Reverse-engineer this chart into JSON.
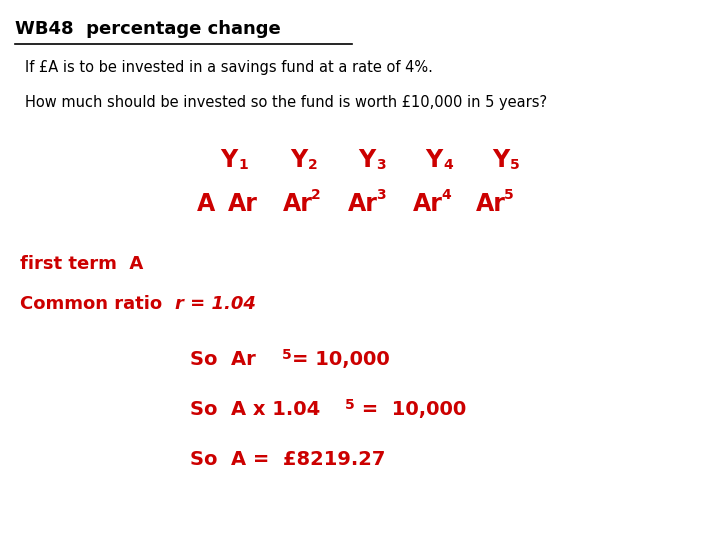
{
  "title": "WB48  percentage change",
  "line1": "If £A is to be invested in a savings fund at a rate of 4%.",
  "line2": "How much should be invested so the fund is worth £10,000 in 5 years?",
  "first_term": "first term  A",
  "common_ratio_pre": "Common ratio  ",
  "common_ratio_math": "r = 1.04",
  "so3": "So  A =  £8219.27",
  "bg_color": "#ffffff",
  "black_color": "#000000",
  "red_color": "#cc0000"
}
